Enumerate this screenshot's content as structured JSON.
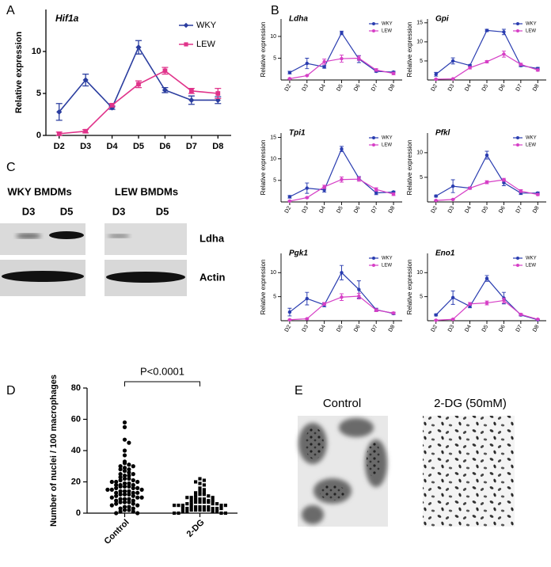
{
  "panels": [
    "A",
    "B",
    "C",
    "D",
    "E"
  ],
  "blot": {
    "groups": [
      "WKY BMDMs",
      "LEW BMDMs"
    ],
    "lanes": [
      "D3",
      "D5",
      "D3",
      "D5"
    ],
    "proteins": [
      "Ldha",
      "Actin"
    ]
  },
  "images": {
    "labels": [
      "Control",
      "2-DG (50mM)"
    ]
  },
  "chart_data": [
    {
      "type": "line",
      "title": "Hif1a",
      "ylabel": "Relative expression",
      "categories": [
        "D2",
        "D3",
        "D4",
        "D5",
        "D6",
        "D7",
        "D8"
      ],
      "series": [
        {
          "name": "WKY",
          "color": "#2a3d9f",
          "marker": "diamond",
          "values": [
            2.8,
            6.6,
            3.3,
            10.5,
            5.4,
            4.2,
            4.2
          ],
          "errors": [
            1.0,
            0.7,
            0.2,
            0.8,
            0.3,
            0.5,
            0.4
          ]
        },
        {
          "name": "LEW",
          "color": "#e0338a",
          "marker": "square",
          "values": [
            0.2,
            0.5,
            3.6,
            6.1,
            7.7,
            5.3,
            5.0
          ],
          "errors": [
            0.2,
            0.2,
            0.2,
            0.4,
            0.4,
            0.3,
            0.6
          ]
        }
      ],
      "ylim": [
        0,
        15
      ],
      "yticks": [
        0,
        5,
        10
      ],
      "legend": "upper right"
    },
    {
      "type": "line",
      "title": "Ldha",
      "ylabel": "Relative expression",
      "categories": [
        "D2",
        "D3",
        "D4",
        "D5",
        "D6",
        "D7",
        "D8"
      ],
      "series": [
        {
          "name": "WKY",
          "color": "#2a3db0",
          "marker": "circle",
          "values": [
            1.7,
            3.8,
            3.0,
            10.8,
            4.8,
            2.0,
            1.8
          ],
          "errors": [
            0.3,
            1.2,
            0.3,
            0.4,
            0.8,
            0.2,
            0.2
          ]
        },
        {
          "name": "LEW",
          "color": "#d63fc6",
          "marker": "circle",
          "values": [
            0.3,
            1.0,
            4.2,
            4.9,
            5.0,
            2.3,
            1.5
          ],
          "errors": [
            0.1,
            0.1,
            0.6,
            0.8,
            0.5,
            0.3,
            0.3
          ]
        }
      ],
      "ylim": [
        0,
        14
      ],
      "yticks": [
        5,
        10
      ],
      "legend": "upper right"
    },
    {
      "type": "line",
      "title": "Gpi",
      "ylabel": "Relative expression",
      "categories": [
        "D2",
        "D3",
        "D4",
        "D5",
        "D6",
        "D7",
        "D8"
      ],
      "series": [
        {
          "name": "WKY",
          "color": "#2a3db0",
          "marker": "circle",
          "values": [
            1.5,
            5.0,
            3.8,
            13.0,
            12.6,
            3.8,
            3.0
          ],
          "errors": [
            0.5,
            0.8,
            0.2,
            0.3,
            0.7,
            0.3,
            0.3
          ]
        },
        {
          "name": "LEW",
          "color": "#d63fc6",
          "marker": "circle",
          "values": [
            0.2,
            0.3,
            3.2,
            4.8,
            6.8,
            4.1,
            2.6
          ],
          "errors": [
            0.1,
            0.1,
            0.3,
            0.3,
            0.8,
            0.3,
            0.3
          ]
        }
      ],
      "ylim": [
        0,
        16
      ],
      "yticks": [
        5,
        10,
        15
      ],
      "legend": "upper right"
    },
    {
      "type": "line",
      "title": "Tpi1",
      "ylabel": "Relative expression",
      "categories": [
        "D2",
        "D3",
        "D4",
        "D5",
        "D6",
        "D7",
        "D8"
      ],
      "series": [
        {
          "name": "WKY",
          "color": "#2a3db0",
          "marker": "circle",
          "values": [
            1.2,
            3.2,
            2.8,
            12.3,
            5.5,
            2.1,
            2.3
          ],
          "errors": [
            0.3,
            1.2,
            0.5,
            0.6,
            0.4,
            0.4,
            0.2
          ]
        },
        {
          "name": "LEW",
          "color": "#d63fc6",
          "marker": "circle",
          "values": [
            0.2,
            1.0,
            3.5,
            5.2,
            5.3,
            2.9,
            1.8
          ],
          "errors": [
            0.1,
            0.1,
            0.4,
            0.6,
            0.5,
            0.4,
            0.3
          ]
        }
      ],
      "ylim": [
        0,
        16
      ],
      "yticks": [
        5,
        10,
        15
      ],
      "legend": "upper right"
    },
    {
      "type": "line",
      "title": "Pfkl",
      "ylabel": "Relative expression",
      "categories": [
        "D2",
        "D3",
        "D4",
        "D5",
        "D6",
        "D7",
        "D8"
      ],
      "series": [
        {
          "name": "WKY",
          "color": "#2a3db0",
          "marker": "circle",
          "values": [
            1.2,
            3.2,
            2.8,
            9.5,
            3.9,
            1.8,
            1.8
          ],
          "errors": [
            0.2,
            1.3,
            0.2,
            0.8,
            0.6,
            0.3,
            0.2
          ]
        },
        {
          "name": "LEW",
          "color": "#d63fc6",
          "marker": "circle",
          "values": [
            0.3,
            0.5,
            2.8,
            4.0,
            4.5,
            2.2,
            1.5
          ],
          "errors": [
            0.1,
            0.1,
            0.2,
            0.3,
            0.3,
            0.3,
            0.2
          ]
        }
      ],
      "ylim": [
        0,
        14
      ],
      "yticks": [
        5,
        10
      ],
      "legend": "upper right"
    },
    {
      "type": "line",
      "title": "Pgk1",
      "ylabel": "Relative expression",
      "categories": [
        "D2",
        "D3",
        "D4",
        "D5",
        "D6",
        "D7",
        "D8"
      ],
      "series": [
        {
          "name": "WKY",
          "color": "#2a3db0",
          "marker": "circle",
          "values": [
            1.8,
            4.6,
            3.3,
            10.0,
            6.5,
            2.3,
            1.5
          ],
          "errors": [
            0.8,
            1.3,
            0.4,
            1.5,
            1.8,
            0.3,
            0.2
          ]
        },
        {
          "name": "LEW",
          "color": "#d63fc6",
          "marker": "circle",
          "values": [
            0.2,
            0.4,
            3.5,
            4.9,
            5.1,
            2.2,
            1.6
          ],
          "errors": [
            0.1,
            0.1,
            0.3,
            0.7,
            0.6,
            0.3,
            0.2
          ]
        }
      ],
      "ylim": [
        0,
        14
      ],
      "yticks": [
        5,
        10
      ],
      "legend": "upper right"
    },
    {
      "type": "line",
      "title": "Eno1",
      "ylabel": "Relative expression",
      "categories": [
        "D2",
        "D3",
        "D4",
        "D5",
        "D6",
        "D7",
        "D8"
      ],
      "series": [
        {
          "name": "WKY",
          "color": "#2a3db0",
          "marker": "circle",
          "values": [
            1.2,
            4.8,
            3.0,
            8.8,
            4.7,
            1.2,
            0.2
          ],
          "errors": [
            0.2,
            1.4,
            0.3,
            0.6,
            1.2,
            0.2,
            0.1
          ]
        },
        {
          "name": "LEW",
          "color": "#d63fc6",
          "marker": "circle",
          "values": [
            0.1,
            0.3,
            3.5,
            3.7,
            4.2,
            1.3,
            0.3
          ],
          "errors": [
            0.1,
            0.1,
            0.3,
            0.4,
            0.5,
            0.2,
            0.1
          ]
        }
      ],
      "ylim": [
        0,
        14
      ],
      "yticks": [
        5,
        10
      ],
      "legend": "upper right"
    },
    {
      "type": "strip",
      "ylabel": "Number of nuclei / 100 macrophages",
      "categories": [
        "Control",
        "2-DG"
      ],
      "annotation": "P<0.0001",
      "color": "#000000",
      "groups": [
        {
          "marker": "circle",
          "values": [
            58,
            55,
            47,
            45,
            40,
            37,
            33,
            32,
            31,
            30,
            30,
            29,
            28,
            28,
            27,
            26,
            25,
            25,
            24,
            24,
            23,
            22,
            22,
            21,
            21,
            20,
            20,
            20,
            19,
            19,
            18,
            18,
            18,
            17,
            17,
            17,
            16,
            16,
            16,
            15,
            15,
            15,
            14,
            14,
            14,
            13,
            13,
            13,
            12,
            12,
            12,
            11,
            11,
            10,
            10,
            10,
            9,
            9,
            9,
            8,
            8,
            7,
            7,
            7,
            6,
            6,
            5,
            5,
            4,
            4,
            3,
            3,
            2,
            2,
            1,
            1,
            0,
            0
          ]
        },
        {
          "marker": "square",
          "values": [
            22,
            21,
            20,
            19,
            18,
            16,
            15,
            14,
            13,
            13,
            12,
            12,
            11,
            11,
            10,
            10,
            10,
            9,
            9,
            9,
            8,
            8,
            8,
            7,
            7,
            7,
            7,
            6,
            6,
            6,
            6,
            5,
            5,
            5,
            5,
            5,
            4,
            4,
            4,
            4,
            4,
            3,
            3,
            3,
            3,
            3,
            2,
            2,
            2,
            2,
            2,
            1,
            1,
            1,
            1,
            0,
            0,
            0,
            0
          ]
        }
      ],
      "ylim": [
        0,
        80
      ],
      "yticks": [
        0,
        20,
        40,
        60,
        80
      ]
    }
  ]
}
